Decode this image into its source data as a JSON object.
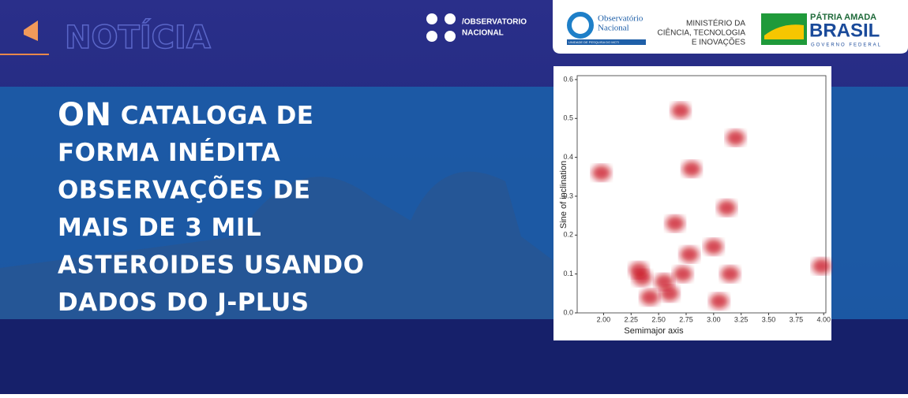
{
  "header": {
    "label": "NOTÍCIA",
    "social": [
      "/OBSERVATORIO",
      "NACIONAL"
    ],
    "logos": {
      "on_name": [
        "Observatório",
        "Nacional"
      ],
      "on_sub": "UNIDADE DE PESQUISA DO MCTI",
      "ministry": [
        "MINISTÉRIO DA",
        "CIÊNCIA, TECNOLOGIA",
        "E INOVAÇÕES"
      ],
      "gov": [
        "PÁTRIA AMADA",
        "BRASIL",
        "GOVERNO FEDERAL"
      ]
    }
  },
  "headline": {
    "lead": "ON",
    "lines": [
      "CATALOGA DE",
      "FORMA INÉDITA",
      "OBSERVAÇÕES DE",
      "MAIS DE 3 MIL",
      "ASTEROIDES USANDO",
      "DADOS DO J-PLUS"
    ]
  },
  "chart_data": {
    "type": "scatter",
    "xlabel": "Semimajor axis",
    "ylabel": "Sine of inclination",
    "color": "#c8101a",
    "x": [
      1.98,
      2.35,
      2.42,
      2.32,
      2.65,
      2.72,
      2.78,
      2.6,
      3.0,
      3.05,
      3.12,
      3.15,
      2.8,
      3.2,
      2.7,
      3.98,
      2.55
    ],
    "values": [
      0.36,
      0.09,
      0.04,
      0.11,
      0.23,
      0.1,
      0.15,
      0.05,
      0.17,
      0.03,
      0.27,
      0.1,
      0.37,
      0.45,
      0.52,
      0.12,
      0.08
    ],
    "xlim": [
      1.76,
      4.02
    ],
    "ylim": [
      0,
      0.61
    ],
    "xticks": [
      {
        "value": 2,
        "label": "2.00"
      },
      {
        "value": 2.25,
        "label": "2.25"
      },
      {
        "value": 2.5,
        "label": "2.50"
      },
      {
        "value": 2.75,
        "label": "2.75"
      },
      {
        "value": 3,
        "label": "3.00"
      },
      {
        "value": 3.25,
        "label": "3.25"
      },
      {
        "value": 3.5,
        "label": "3.50"
      },
      {
        "value": 3.75,
        "label": "3.75"
      },
      {
        "value": 4,
        "label": "4.00"
      }
    ],
    "yticks": [
      {
        "value": 0,
        "label": "0.0"
      },
      0.1,
      0.2,
      0.3,
      0.4,
      0.5,
      0.6
    ]
  }
}
